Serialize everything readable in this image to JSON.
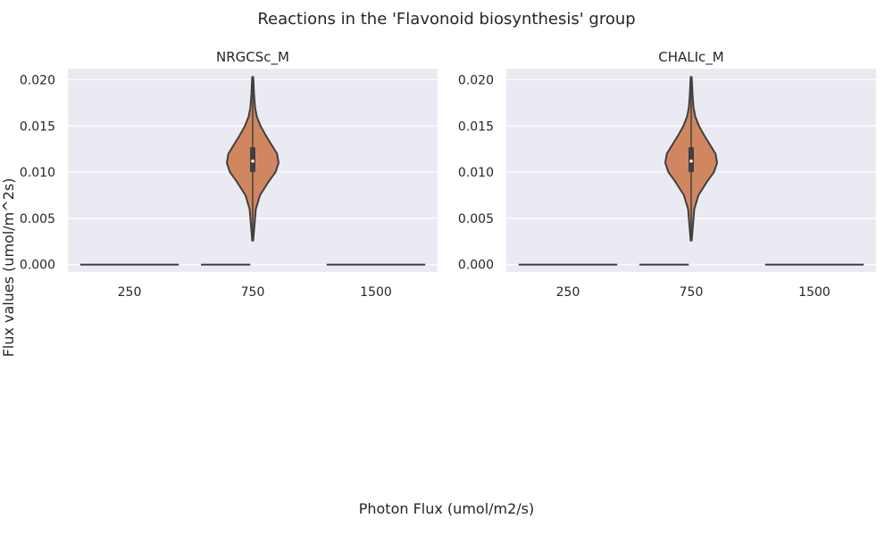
{
  "figure": {
    "suptitle": "Reactions in the 'Flavonoid biosynthesis' group",
    "xlabel": "Photon Flux (umol/m2/s)",
    "ylabel": "Flux values (umol/m^2s)"
  },
  "colors": {
    "panel_bg": "#eaeaf2",
    "grid": "#ffffff",
    "violin_fill": "#d0875f",
    "line": "#404040",
    "text": "#262626"
  },
  "chart_data": [
    {
      "type": "violin",
      "title": "NRGCSc_M",
      "categories": [
        "250",
        "750",
        "1500"
      ],
      "yticks": [
        "0.000",
        "0.005",
        "0.010",
        "0.015",
        "0.020"
      ],
      "ylim": [
        -0.0008,
        0.0212
      ],
      "grid": true,
      "series": [
        {
          "category": "250",
          "min": 0.0,
          "max": 0.0,
          "q1": 0.0,
          "median": 0.0,
          "q3": 0.0
        },
        {
          "category": "750",
          "min": 0.0,
          "max": 0.0,
          "q1": 0.0,
          "median": 0.0,
          "q3": 0.0
        },
        {
          "category": "1500",
          "min": 0.0,
          "max": 0.0,
          "q1": 0.0,
          "median": 0.0,
          "q3": 0.0
        },
        {
          "category": "750",
          "min": 0.0026,
          "max": 0.0203,
          "q1": 0.01,
          "median": 0.0112,
          "q3": 0.0127,
          "density": [
            [
              0.0026,
              0.02
            ],
            [
              0.004,
              0.06
            ],
            [
              0.006,
              0.12
            ],
            [
              0.0075,
              0.28
            ],
            [
              0.009,
              0.62
            ],
            [
              0.01,
              0.88
            ],
            [
              0.011,
              1.0
            ],
            [
              0.012,
              0.94
            ],
            [
              0.013,
              0.72
            ],
            [
              0.014,
              0.5
            ],
            [
              0.015,
              0.3
            ],
            [
              0.016,
              0.16
            ],
            [
              0.017,
              0.09
            ],
            [
              0.0185,
              0.05
            ],
            [
              0.0203,
              0.02
            ]
          ]
        }
      ]
    },
    {
      "type": "violin",
      "title": "CHALIc_M",
      "categories": [
        "250",
        "750",
        "1500"
      ],
      "yticks": [
        "0.000",
        "0.005",
        "0.010",
        "0.015",
        "0.020"
      ],
      "ylim": [
        -0.0008,
        0.0212
      ],
      "grid": true,
      "series": [
        {
          "category": "250",
          "min": 0.0,
          "max": 0.0,
          "q1": 0.0,
          "median": 0.0,
          "q3": 0.0
        },
        {
          "category": "750",
          "min": 0.0,
          "max": 0.0,
          "q1": 0.0,
          "median": 0.0,
          "q3": 0.0
        },
        {
          "category": "1500",
          "min": 0.0,
          "max": 0.0,
          "q1": 0.0,
          "median": 0.0,
          "q3": 0.0
        },
        {
          "category": "750",
          "min": 0.0026,
          "max": 0.0203,
          "q1": 0.01,
          "median": 0.0112,
          "q3": 0.0127,
          "density": [
            [
              0.0026,
              0.02
            ],
            [
              0.004,
              0.06
            ],
            [
              0.006,
              0.12
            ],
            [
              0.0075,
              0.28
            ],
            [
              0.009,
              0.62
            ],
            [
              0.01,
              0.88
            ],
            [
              0.011,
              1.0
            ],
            [
              0.012,
              0.94
            ],
            [
              0.013,
              0.72
            ],
            [
              0.014,
              0.5
            ],
            [
              0.015,
              0.3
            ],
            [
              0.016,
              0.16
            ],
            [
              0.017,
              0.09
            ],
            [
              0.0185,
              0.05
            ],
            [
              0.0203,
              0.02
            ]
          ]
        }
      ]
    }
  ]
}
